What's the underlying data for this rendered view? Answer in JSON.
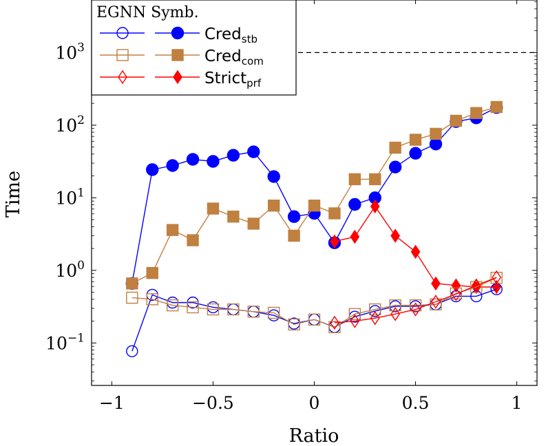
{
  "chart_data": {
    "type": "line",
    "xlabel": "Ratio",
    "ylabel": "Time",
    "xlim": [
      -1.1,
      1.1
    ],
    "ylim": [
      0.026,
      5300
    ],
    "yscale": "log",
    "grid": false,
    "legend_placement": "top-left",
    "legend_title": "EGNN Symb.",
    "x_ticks": [
      {
        "v": -1,
        "label": "−1"
      },
      {
        "v": -0.5,
        "label": "−0.5"
      },
      {
        "v": 0,
        "label": "0"
      },
      {
        "v": 0.5,
        "label": "0.5"
      },
      {
        "v": 1,
        "label": "1"
      }
    ],
    "y_ticks": [
      {
        "v": 0.1,
        "base": "10",
        "exp": "−1"
      },
      {
        "v": 1,
        "base": "10",
        "exp": "0"
      },
      {
        "v": 10,
        "base": "10",
        "exp": "1"
      },
      {
        "v": 100,
        "base": "10",
        "exp": "2"
      },
      {
        "v": 1000,
        "base": "10",
        "exp": "3"
      }
    ],
    "timeout_line": 1000,
    "series": [
      {
        "name": "Cred",
        "sub": "stb",
        "group": "Symb.",
        "color": "#0000ff",
        "marker": "circle-filled",
        "x": [
          -0.9,
          -0.8,
          -0.7,
          -0.6,
          -0.5,
          -0.4,
          -0.3,
          -0.2,
          -0.1,
          0,
          0.1,
          0.2,
          0.3,
          0.4,
          0.5,
          0.6,
          0.7,
          0.8,
          0.9
        ],
        "y": [
          0.66,
          24.4,
          27.8,
          33.8,
          31.7,
          38.5,
          43,
          19.6,
          5.5,
          6.1,
          2.4,
          8.1,
          10,
          26.5,
          41,
          55,
          112,
          126,
          175
        ]
      },
      {
        "name": "Cred",
        "sub": "com",
        "group": "Symb.",
        "color": "#bf8040",
        "marker": "square-filled",
        "x": [
          -0.9,
          -0.8,
          -0.7,
          -0.6,
          -0.5,
          -0.4,
          -0.3,
          -0.2,
          -0.1,
          0,
          0.1,
          0.2,
          0.3,
          0.4,
          0.5,
          0.6,
          0.7,
          0.8,
          0.9
        ],
        "y": [
          0.66,
          0.92,
          3.6,
          2.6,
          7.1,
          5.5,
          4.4,
          7.8,
          3.0,
          7.8,
          6.1,
          18,
          18,
          49,
          63,
          76,
          115,
          147,
          178
        ]
      },
      {
        "name": "Strict",
        "sub": "prf",
        "group": "Symb.",
        "color": "#ff0000",
        "marker": "diamond-filled",
        "x": [
          0.1,
          0.2,
          0.3,
          0.4,
          0.5,
          0.6,
          0.7,
          0.8,
          0.9
        ],
        "y": [
          2.5,
          2.9,
          7.6,
          3.0,
          1.8,
          0.66,
          0.62,
          0.59,
          0.59
        ]
      },
      {
        "group": "EGNN",
        "color": "#0000ff",
        "marker": "circle-open",
        "x": [
          -0.9,
          -0.8,
          -0.7,
          -0.6,
          -0.5,
          -0.4,
          -0.3,
          -0.2,
          -0.1,
          0,
          0.1,
          0.2,
          0.3,
          0.4,
          0.5,
          0.6,
          0.7,
          0.8,
          0.9
        ],
        "y": [
          0.077,
          0.46,
          0.36,
          0.36,
          0.31,
          0.29,
          0.27,
          0.24,
          0.185,
          0.21,
          0.166,
          0.23,
          0.275,
          0.32,
          0.32,
          0.34,
          0.44,
          0.44,
          0.55
        ]
      },
      {
        "group": "EGNN",
        "color": "#bf8040",
        "marker": "square-open",
        "x": [
          -0.9,
          -0.8,
          -0.7,
          -0.6,
          -0.5,
          -0.4,
          -0.3,
          -0.2,
          -0.1,
          0,
          0.1,
          0.2,
          0.3,
          0.4,
          0.5,
          0.6,
          0.7,
          0.8,
          0.9
        ],
        "y": [
          0.42,
          0.4,
          0.33,
          0.31,
          0.29,
          0.29,
          0.27,
          0.26,
          0.18,
          0.21,
          0.165,
          0.25,
          0.29,
          0.33,
          0.33,
          0.34,
          0.48,
          0.59,
          0.79
        ]
      },
      {
        "group": "EGNN",
        "color": "#ff0000",
        "marker": "diamond-open",
        "x": [
          0.1,
          0.2,
          0.3,
          0.4,
          0.5,
          0.6,
          0.7,
          0.8,
          0.9
        ],
        "y": [
          0.19,
          0.2,
          0.22,
          0.25,
          0.29,
          0.37,
          0.47,
          0.62,
          0.8
        ]
      }
    ]
  }
}
